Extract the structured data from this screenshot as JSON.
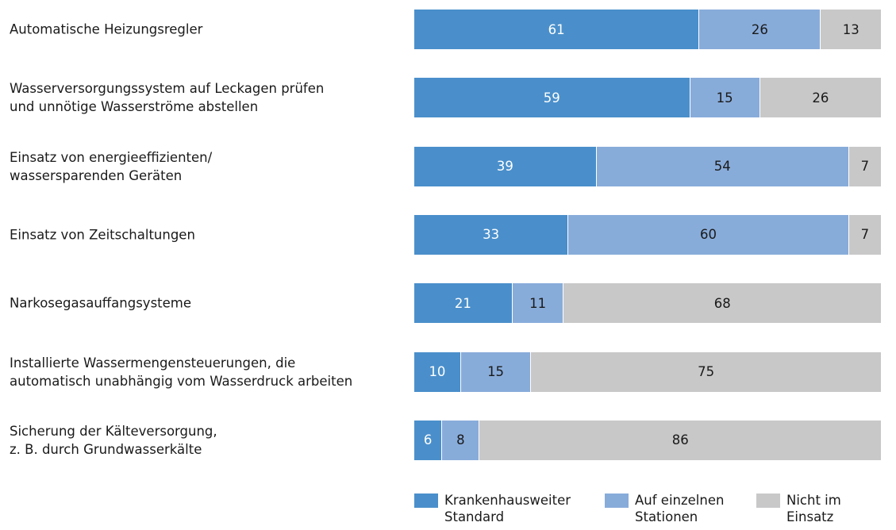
{
  "chart_data": {
    "type": "stacked-bar-horizontal",
    "categories": [
      "Automatische Heizungsregler",
      "Wasserversorgungssystem auf Leckagen prüfen\nund unnötige Wasserströme abstellen",
      "Einsatz von energieeffizienten/\nwassersparenden Geräten",
      "Einsatz von Zeitschaltungen",
      "Narkosegasauffangsysteme",
      "Installierte Wassermengensteuerungen, die\nautomatisch unabhängig vom Wasserdruck arbeiten",
      "Sicherung der Kälteversorgung,\nz. B. durch Grundwasserkälte"
    ],
    "series": [
      {
        "name": "Krankenhausweiter\nStandard",
        "color": "#4a8fcb",
        "values": [
          61,
          59,
          39,
          33,
          21,
          10,
          6
        ]
      },
      {
        "name": "Auf einzelnen\nStationen",
        "color": "#88acda",
        "values": [
          26,
          15,
          54,
          60,
          11,
          15,
          8
        ]
      },
      {
        "name": "Nicht im\nEinsatz",
        "color": "#c8c8c9",
        "values": [
          13,
          26,
          7,
          7,
          68,
          75,
          86
        ]
      }
    ],
    "xlim": [
      0,
      100
    ],
    "legend": "bottom"
  }
}
